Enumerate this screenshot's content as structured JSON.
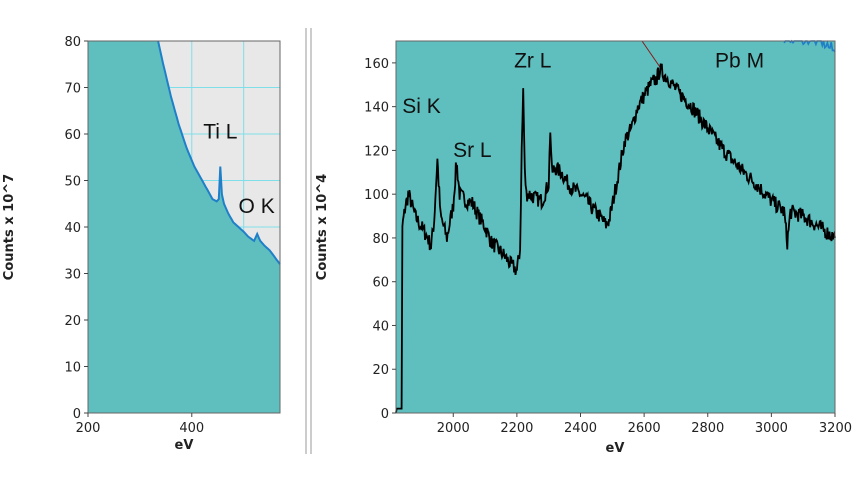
{
  "chart_data": [
    {
      "type": "area",
      "xlabel": "eV",
      "ylabel": "Counts x 10^7",
      "xlim": [
        200,
        570
      ],
      "ylim": [
        0,
        80
      ],
      "x_ticks": [
        200,
        400
      ],
      "y_ticks": [
        0,
        10,
        20,
        30,
        40,
        50,
        60,
        70,
        80
      ],
      "grid": true,
      "colors": {
        "fill": "#5fbfbf",
        "line": "#1f7fc8",
        "background": "#e8e8e8",
        "grid": "#7fdfe8"
      },
      "series": [
        {
          "x": [
            335,
            345,
            360,
            375,
            390,
            405,
            420,
            430,
            440,
            448,
            452,
            455,
            458,
            462,
            470,
            480,
            490,
            500,
            508,
            514,
            520,
            526,
            532,
            540,
            550,
            560,
            570
          ],
          "y": [
            80,
            75,
            68,
            62,
            57,
            53,
            50,
            48,
            46,
            45.5,
            46,
            53,
            47,
            45,
            43,
            41,
            40,
            39,
            38,
            37.5,
            37,
            38.5,
            37,
            36,
            35,
            33.5,
            32
          ]
        }
      ],
      "annotations": [
        {
          "text": "Ti L",
          "x": 455,
          "y": 59
        },
        {
          "text": "O K",
          "x": 525,
          "y": 43
        }
      ]
    },
    {
      "type": "line",
      "xlabel": "eV",
      "ylabel": "Counts x 10^4",
      "xlim": [
        1820,
        3200
      ],
      "ylim": [
        0,
        170
      ],
      "x_ticks": [
        2000,
        2200,
        2400,
        2600,
        2800,
        3000,
        3200
      ],
      "y_ticks": [
        0,
        20,
        40,
        60,
        80,
        100,
        120,
        140,
        160
      ],
      "grid": false,
      "colors": {
        "fill": "#5fbfbf",
        "line": "#000000",
        "marker": "#8b1a1a"
      },
      "series": [
        {
          "x": [
            1820,
            1830,
            1835,
            1840,
            1850,
            1860,
            1880,
            1900,
            1920,
            1930,
            1940,
            1950,
            1960,
            1980,
            2000,
            2010,
            2020,
            2040,
            2060,
            2080,
            2100,
            2120,
            2140,
            2160,
            2180,
            2200,
            2210,
            2215,
            2220,
            2225,
            2230,
            2240,
            2260,
            2280,
            2300,
            2305,
            2310,
            2320,
            2340,
            2360,
            2380,
            2400,
            2420,
            2440,
            2460,
            2480,
            2490,
            2500,
            2520,
            2540,
            2560,
            2580,
            2600,
            2620,
            2640,
            2650,
            2660,
            2680,
            2700,
            2750,
            2800,
            2850,
            2900,
            2950,
            3000,
            3040,
            3050,
            3060,
            3100,
            3150,
            3200
          ],
          "y": [
            0,
            2,
            45,
            85,
            95,
            100,
            90,
            85,
            80,
            76,
            88,
            116,
            90,
            80,
            95,
            115,
            100,
            97,
            96,
            90,
            85,
            78,
            75,
            72,
            68,
            65,
            75,
            120,
            148,
            110,
            100,
            100,
            98,
            97,
            105,
            130,
            110,
            112,
            110,
            105,
            102,
            100,
            97,
            93,
            90,
            86,
            88,
            95,
            110,
            125,
            130,
            140,
            145,
            150,
            153,
            157,
            155,
            152,
            148,
            140,
            130,
            120,
            112,
            105,
            97,
            92,
            78,
            92,
            90,
            85,
            80
          ]
        },
        {
          "x": [
            3040,
            3080,
            3120,
            3160,
            3200
          ],
          "y": [
            172,
            172,
            171,
            170,
            165
          ]
        }
      ],
      "annotations": [
        {
          "text": "Si K",
          "x": 1900,
          "y": 137
        },
        {
          "text": "Sr L",
          "x": 2060,
          "y": 117
        },
        {
          "text": "Zr L",
          "x": 2250,
          "y": 158
        },
        {
          "text": "Pb M",
          "x": 2900,
          "y": 158
        }
      ]
    }
  ]
}
